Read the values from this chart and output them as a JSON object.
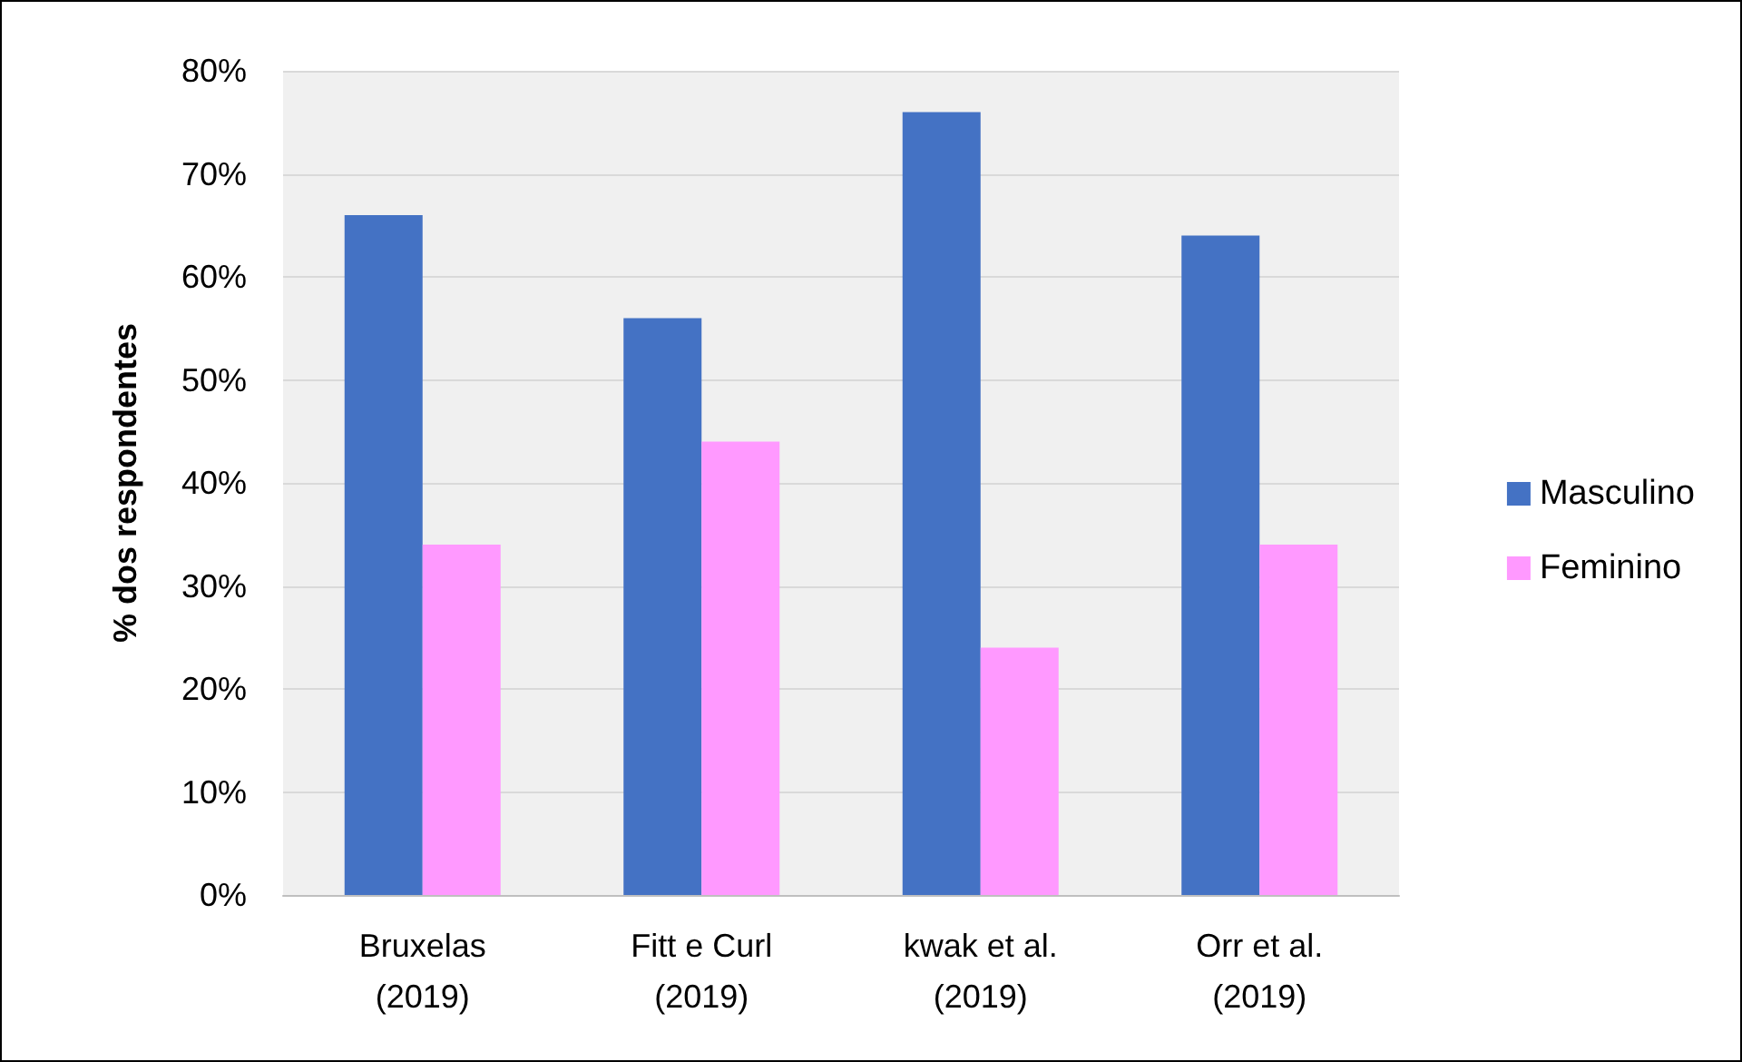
{
  "chart_data": {
    "type": "bar",
    "ylabel": "% dos respondentes",
    "categories": [
      "Bruxelas (2019)",
      "Fitt e Curl (2019)",
      "kwak et al. (2019)",
      "Orr et al. (2019)"
    ],
    "series": [
      {
        "name": "Masculino",
        "color": "#4472c4",
        "values": [
          66,
          56,
          76,
          64
        ]
      },
      {
        "name": "Feminino",
        "color": "#ff99ff",
        "values": [
          34,
          44,
          24,
          34
        ]
      }
    ],
    "ylim": [
      0,
      80
    ],
    "yticks": [
      {
        "value": 0,
        "label": "0%"
      },
      {
        "value": 10,
        "label": "10%"
      },
      {
        "value": 20,
        "label": "20%"
      },
      {
        "value": 30,
        "label": "30%"
      },
      {
        "value": 40,
        "label": "40%"
      },
      {
        "value": 50,
        "label": "50%"
      },
      {
        "value": 60,
        "label": "60%"
      },
      {
        "value": 70,
        "label": "70%"
      },
      {
        "value": 80,
        "label": "80%"
      }
    ],
    "grid": "y",
    "legend": "right"
  }
}
